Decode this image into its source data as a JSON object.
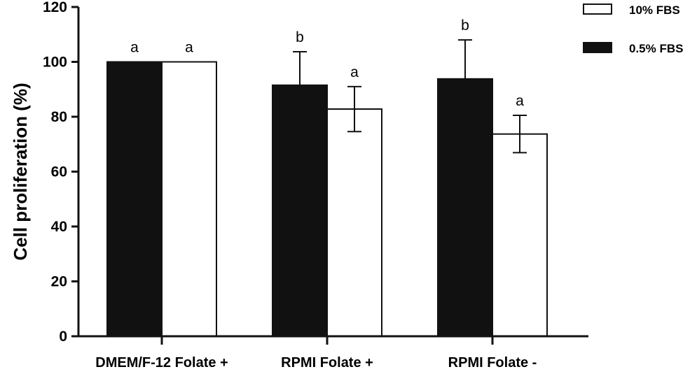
{
  "chart_data": {
    "type": "bar",
    "categories": [
      "DMEM/F-12 Folate +",
      "RPMI Folate +",
      "RPMI Folate -"
    ],
    "ylabel": "Cell proliferation (%)",
    "xlabel": "",
    "ylim": [
      0,
      120
    ],
    "yticks": [
      0,
      20,
      40,
      60,
      80,
      100,
      120
    ],
    "grid": false,
    "legend_position": "top-right",
    "series": [
      {
        "name": "0.5% FBS",
        "color": "#111111",
        "values": [
          100,
          91.5,
          93.8
        ],
        "errors": [
          0,
          12.2,
          14.2
        ],
        "labels": [
          "a",
          "b",
          "b"
        ]
      },
      {
        "name": "10% FBS",
        "color": "#ffffff",
        "values": [
          100,
          82.8,
          73.7
        ],
        "errors": [
          0,
          8.2,
          6.8
        ],
        "labels": [
          "a",
          "a",
          "a"
        ]
      }
    ],
    "legend_order": [
      "10% FBS",
      "0.5% FBS"
    ]
  }
}
